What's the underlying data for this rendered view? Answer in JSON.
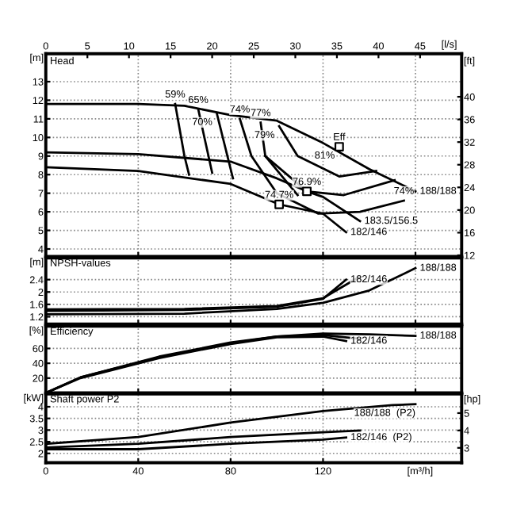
{
  "chart_data": [
    {
      "type": "line",
      "title": "Head",
      "ylabel": "[m]",
      "y2label": "[ft]",
      "x2label": "[l/s]",
      "tick_labels": "y",
      "grid": true,
      "xlim": [
        0,
        180
      ],
      "xticks": [
        0,
        40,
        80,
        120,
        160
      ],
      "x2lim": [
        0,
        50
      ],
      "x2ticks": [
        0,
        5,
        10,
        15,
        20,
        25,
        30,
        35,
        40,
        45
      ],
      "ylim": [
        3.6,
        14.5
      ],
      "yticks": [
        4,
        5,
        6,
        7,
        8,
        9,
        10,
        11,
        12,
        13
      ],
      "y2lim": [
        11.8,
        47.6
      ],
      "y2ticks": [
        12,
        16,
        20,
        24,
        28,
        32,
        36,
        40
      ],
      "series": [
        {
          "name": "188/188",
          "color": "#000000",
          "x": [
            0,
            40,
            60,
            80,
            100,
            120,
            140,
            160
          ],
          "values": [
            11.8,
            11.8,
            11.7,
            11.2,
            10.9,
            9.7,
            8.3,
            7.1
          ]
        },
        {
          "name": "183.5/156.5",
          "color": "#000000",
          "x": [
            0,
            40,
            80,
            100,
            113,
            120,
            136
          ],
          "values": [
            9.2,
            9.1,
            8.7,
            7.8,
            7.1,
            6.8,
            5.5
          ]
        },
        {
          "name": "182/146",
          "color": "#000000",
          "x": [
            0,
            40,
            80,
            101,
            120,
            130
          ],
          "values": [
            8.4,
            8.2,
            7.5,
            6.4,
            5.9,
            4.9
          ]
        },
        {
          "color": "#000000",
          "x": [
            56,
            60,
            62
          ],
          "values": [
            11.8,
            9.0,
            8.0
          ]
        },
        {
          "color": "#000000",
          "x": [
            66,
            72
          ],
          "values": [
            11.5,
            8.1
          ]
        },
        {
          "color": "#000000",
          "x": [
            74,
            81
          ],
          "values": [
            11.3,
            7.8
          ]
        },
        {
          "color": "#000000",
          "x": [
            84,
            89,
            100
          ],
          "values": [
            11.0,
            9.0,
            7.0
          ]
        },
        {
          "color": "#000000",
          "x": [
            93,
            95,
            109
          ],
          "values": [
            10.8,
            9.0,
            6.9
          ]
        },
        {
          "color": "#000000",
          "x": [
            101,
            109,
            127,
            143
          ],
          "values": [
            10.6,
            9.0,
            7.9,
            8.2
          ]
        },
        {
          "color": "#000000",
          "x": [
            95,
            113,
            129,
            151
          ],
          "values": [
            9.0,
            7.1,
            6.9,
            7.7
          ]
        },
        {
          "color": "#000000",
          "x": [
            100,
            118,
            136,
            155
          ],
          "values": [
            7.0,
            5.9,
            6.0,
            6.6
          ]
        },
        {
          "type": "scatter",
          "marker": "square",
          "color": "#000000",
          "x": [
            127,
            113,
            101
          ],
          "values": [
            9.5,
            7.1,
            6.4
          ]
        }
      ],
      "annotations": [
        {
          "text": "59%",
          "x": 56,
          "y": 11.8
        },
        {
          "text": "65%",
          "x": 66,
          "y": 11.5
        },
        {
          "text": "70%",
          "x": 74,
          "y": 11.3
        },
        {
          "text": "74%",
          "x": 84,
          "y": 11.0
        },
        {
          "text": "77%",
          "x": 93,
          "y": 10.8
        },
        {
          "text": "79%",
          "x": 101,
          "y": 10.6
        },
        {
          "text": "Eff",
          "x": 127,
          "y": 9.5
        },
        {
          "text": "81%",
          "x": 127,
          "y": 9.5
        },
        {
          "text": "76.9%",
          "x": 113,
          "y": 7.1
        },
        {
          "text": "74.7%",
          "x": 101,
          "y": 6.4
        },
        {
          "text": "74%",
          "x": 155,
          "y": 6.6
        }
      ]
    },
    {
      "type": "line",
      "title": "NPSH-values",
      "ylabel": "[m]",
      "tick_labels": "y",
      "grid": true,
      "xlim": [
        0,
        180
      ],
      "xticks": [
        0,
        40,
        80,
        120,
        160
      ],
      "ylim": [
        0.96,
        3.1
      ],
      "yticks": [
        1.2,
        1.6,
        2,
        2.4
      ],
      "series": [
        {
          "name": "188/188",
          "color": "#000000",
          "x": [
            0,
            60,
            100,
            120,
            140,
            160
          ],
          "values": [
            1.28,
            1.3,
            1.45,
            1.65,
            2.05,
            2.77
          ]
        },
        {
          "color": "#000000",
          "x": [
            0,
            60,
            100,
            120,
            136
          ],
          "values": [
            1.44,
            1.45,
            1.55,
            1.8,
            2.5
          ]
        },
        {
          "name": "182/146",
          "color": "#000000",
          "x": [
            0,
            60,
            100,
            120,
            130
          ],
          "values": [
            1.39,
            1.42,
            1.52,
            1.78,
            2.4
          ]
        }
      ]
    },
    {
      "type": "line",
      "title": "Efficiency",
      "ylabel": "[%]",
      "tick_labels": "y",
      "grid": true,
      "xlim": [
        0,
        180
      ],
      "xticks": [
        0,
        40,
        80,
        120,
        160
      ],
      "ylim": [
        0,
        90
      ],
      "yticks": [
        20,
        40,
        60
      ],
      "series": [
        {
          "name": "188/188",
          "color": "#000000",
          "x": [
            0,
            15,
            49,
            80,
            100,
            120,
            140,
            160
          ],
          "values": [
            0,
            21,
            49,
            68,
            76,
            80,
            79,
            77
          ]
        },
        {
          "color": "#000000",
          "x": [
            0,
            15,
            49,
            80,
            100,
            120,
            136
          ],
          "values": [
            0,
            21,
            48,
            67,
            76,
            78,
            73
          ]
        },
        {
          "name": "182/146",
          "color": "#000000",
          "x": [
            0,
            15,
            49,
            80,
            100,
            120,
            130
          ],
          "values": [
            0,
            20,
            47,
            66,
            75,
            76,
            70
          ]
        }
      ]
    },
    {
      "type": "line",
      "title": "Shaft power P2",
      "ylabel": "[kW]",
      "y2label": "[hp]",
      "xlabel": "[m³/h]",
      "grid": true,
      "xlim": [
        0,
        180
      ],
      "xticks": [
        0,
        40,
        80,
        120
      ],
      "ylim": [
        1.6,
        4.55
      ],
      "yticks": [
        2,
        2.5,
        3,
        3.5,
        4
      ],
      "y2lim": [
        2.146,
        6.1
      ],
      "y2ticks": [
        3,
        4,
        5
      ],
      "series": [
        {
          "name": "188/188  (P2)",
          "color": "#000000",
          "x": [
            0,
            40,
            80,
            120,
            150,
            160
          ],
          "values": [
            2.41,
            2.7,
            3.32,
            3.82,
            4.07,
            4.11
          ]
        },
        {
          "color": "#000000",
          "x": [
            0,
            40,
            80,
            120,
            136
          ],
          "values": [
            2.25,
            2.41,
            2.7,
            2.91,
            2.98
          ]
        },
        {
          "name": "182/146  (P2)",
          "color": "#000000",
          "x": [
            0,
            40,
            80,
            120,
            130
          ],
          "values": [
            2.18,
            2.18,
            2.41,
            2.59,
            2.68
          ]
        }
      ]
    }
  ]
}
